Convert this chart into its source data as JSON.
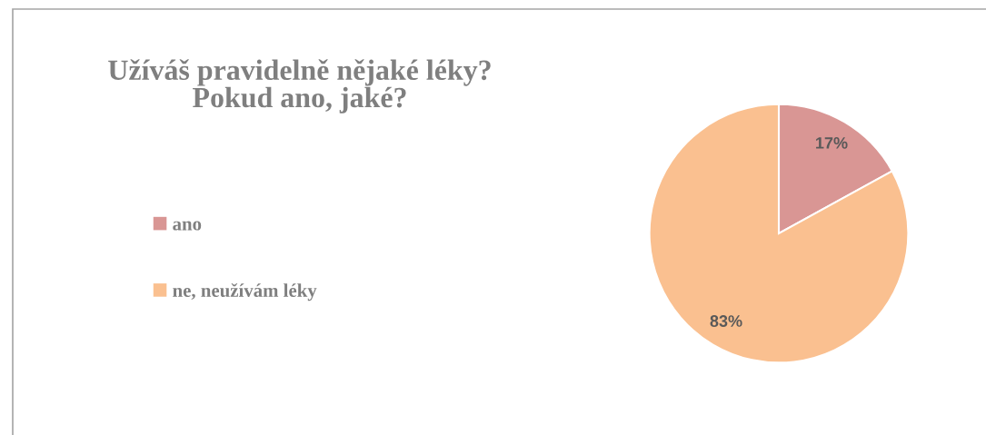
{
  "chart_data": {
    "type": "pie",
    "title": "Užíváš pravidelně nějaké léky?\nPokud ano, jaké?",
    "categories": [
      "ano",
      "ne, neužívám léky"
    ],
    "values": [
      17,
      83
    ],
    "colors": [
      "#d99694",
      "#fac090"
    ],
    "value_labels": [
      "17%",
      "83%"
    ],
    "legend": "left"
  }
}
